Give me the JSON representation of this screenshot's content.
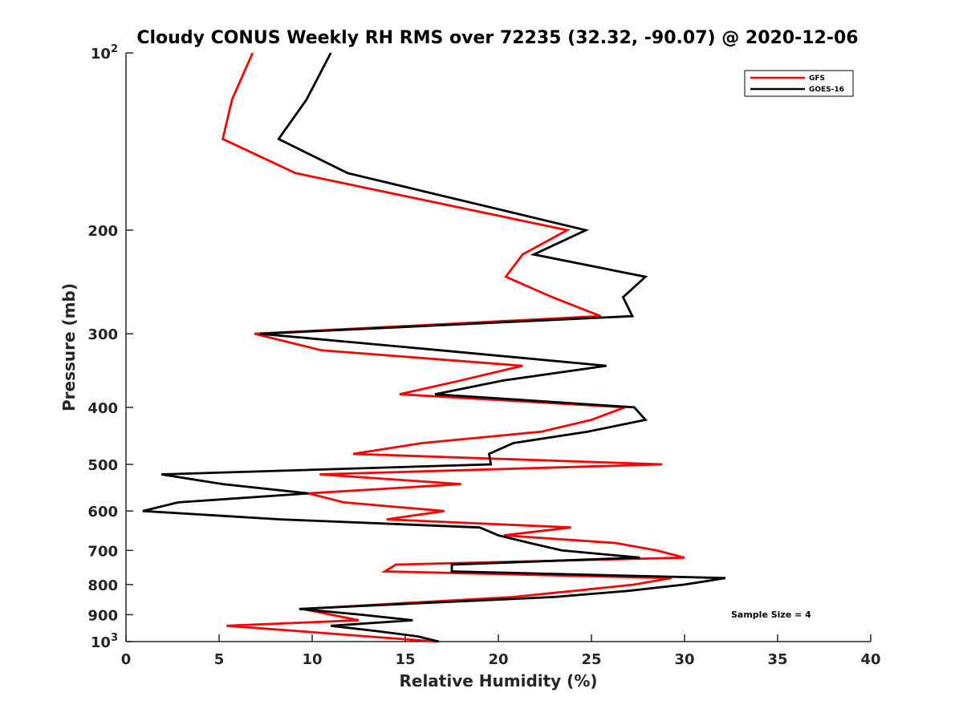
{
  "chart_data": {
    "type": "line",
    "title": "Cloudy CONUS Weekly RH RMS over 72235 (32.32, -90.07) @ 2020-12-06",
    "xlabel": "Relative Humidity (%)",
    "ylabel": "Pressure (mb)",
    "xlim": [
      0,
      40
    ],
    "ylim": [
      100,
      1000
    ],
    "yscale": "log",
    "y_reversed": true,
    "grid": false,
    "legend_position": "top-right",
    "x_ticks": [
      "0",
      "5",
      "10",
      "15",
      "20",
      "25",
      "30",
      "35",
      "40"
    ],
    "y_ticks": [
      {
        "value": 100,
        "base": "10",
        "exp": "2"
      },
      {
        "value": 200,
        "label": "200"
      },
      {
        "value": 300,
        "label": "300"
      },
      {
        "value": 400,
        "label": "400"
      },
      {
        "value": 500,
        "label": "500"
      },
      {
        "value": 600,
        "label": "600"
      },
      {
        "value": 700,
        "label": "700"
      },
      {
        "value": 800,
        "label": "800"
      },
      {
        "value": 900,
        "label": "900"
      },
      {
        "value": 1000,
        "base": "10",
        "exp": "3"
      }
    ],
    "pressure": [
      100,
      120,
      140,
      160,
      200,
      220,
      240,
      260,
      280,
      300,
      320,
      340,
      360,
      380,
      400,
      420,
      440,
      460,
      480,
      500,
      520,
      540,
      560,
      580,
      600,
      620,
      640,
      660,
      680,
      700,
      720,
      740,
      760,
      780,
      800,
      820,
      840,
      860,
      880,
      900,
      920,
      940,
      960,
      980,
      1000
    ],
    "series": [
      {
        "name": "GFS",
        "color": "#ff0000",
        "values": [
          6.8,
          5.7,
          5.2,
          9.1,
          23.7,
          21.3,
          20.4,
          22.9,
          25.5,
          6.9,
          10.5,
          21.3,
          18.0,
          14.7,
          26.8,
          25.0,
          22.3,
          15.9,
          12.2,
          28.8,
          10.4,
          18.0,
          9.8,
          11.7,
          17.1,
          14.0,
          23.9,
          20.3,
          26.3,
          28.5,
          30.0,
          14.5,
          13.9,
          29.3,
          27.3,
          24.1,
          20.8,
          15.0,
          9.5,
          11.0,
          12.5,
          5.4,
          9.3,
          13.0,
          16.7
        ]
      },
      {
        "name": "GOES-16",
        "color": "#000000",
        "values": [
          11.0,
          9.7,
          8.2,
          11.9,
          24.7,
          21.9,
          27.9,
          26.7,
          27.2,
          7.2,
          16.9,
          25.8,
          20.3,
          16.6,
          27.3,
          27.9,
          24.8,
          20.8,
          19.5,
          19.6,
          1.9,
          5.2,
          9.8,
          2.8,
          0.9,
          8.3,
          19.0,
          20.0,
          21.7,
          23.4,
          27.6,
          17.5,
          17.5,
          32.2,
          30.0,
          27.0,
          23.0,
          16.0,
          9.3,
          12.6,
          15.4,
          11.0,
          13.5,
          15.7,
          16.8
        ]
      }
    ],
    "annotations": [
      "Sample Size = 4"
    ]
  }
}
